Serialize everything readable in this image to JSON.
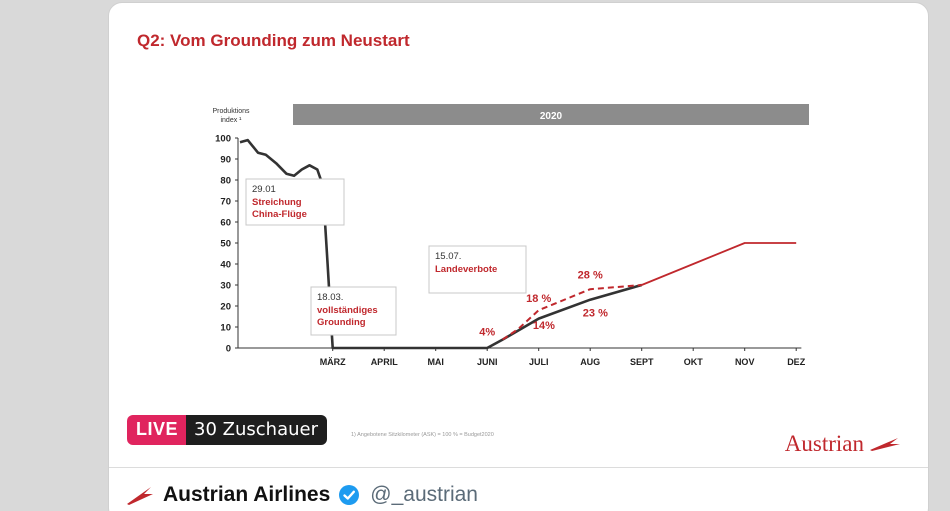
{
  "slide": {
    "title": "Q2: Vom Grounding zum Neustart",
    "footnote": "1) Angebotene Sitzkilometer (ASK) = 100 % = Budget2020",
    "logo_text": "Austrian"
  },
  "live": {
    "tag": "LIVE",
    "viewers": "30 Zuschauer"
  },
  "profile": {
    "name": "Austrian Airlines",
    "handle": "@_austrian"
  },
  "colors": {
    "brand_red": "#c0282d",
    "actual_line": "#333333",
    "year_bar": "#8c8c8c",
    "live_pink": "#e0245e"
  },
  "chart_data": {
    "type": "line",
    "title": "Q2: Vom Grounding zum Neustart",
    "ylabel_line1": "Produktions",
    "ylabel_line2": "index ¹",
    "year_label": "2020",
    "ylim": [
      0,
      100
    ],
    "yticks": [
      0,
      10,
      20,
      30,
      40,
      50,
      60,
      70,
      80,
      90,
      100
    ],
    "months": [
      "MÄRZ",
      "APRIL",
      "MAI",
      "JUNI",
      "JULI",
      "AUG",
      "SEPT",
      "OKT",
      "NOV",
      "DEZ"
    ],
    "month_positions": [
      2,
      3,
      4,
      5,
      6,
      7,
      8,
      9,
      10,
      11
    ],
    "xlim": [
      0.2,
      11.1
    ],
    "series": [
      {
        "style": "actual",
        "x": [
          0.2,
          0.35,
          0.45,
          0.55,
          0.7,
          0.9,
          1.1,
          1.25,
          1.4,
          1.55,
          1.7,
          1.8,
          1.85,
          1.9,
          1.95,
          2.0,
          4.9,
          5.0,
          5.3,
          6.0,
          7.0,
          8.0
        ],
        "values": [
          98,
          99,
          96,
          93,
          92,
          88,
          83,
          82,
          85,
          87,
          85,
          78,
          60,
          40,
          20,
          0,
          0,
          0,
          4,
          14,
          23,
          30
        ]
      },
      {
        "style": "forecast_dashed",
        "x": [
          5.3,
          5.6,
          6.0,
          7.0,
          8.0
        ],
        "values": [
          4,
          9,
          18,
          28,
          30
        ]
      },
      {
        "style": "plan",
        "x": [
          8.0,
          9.0,
          10.0,
          11.0
        ],
        "values": [
          30,
          40,
          50,
          50
        ]
      }
    ],
    "annotations": [
      {
        "date": "29.01",
        "text": [
          "Streichung",
          "China-Flüge"
        ]
      },
      {
        "date": "18.03.",
        "text": [
          "vollständiges",
          "Grounding"
        ]
      },
      {
        "date": "15.07.",
        "text": [
          "Landeverbote"
        ]
      }
    ],
    "value_labels": [
      {
        "text": "4%",
        "x": 5.0,
        "y": 6
      },
      {
        "text": "18 %",
        "x": 6.0,
        "y": 22
      },
      {
        "text": "14%",
        "x": 6.1,
        "y": 9
      },
      {
        "text": "28 %",
        "x": 7.0,
        "y": 33
      },
      {
        "text": "23 %",
        "x": 7.1,
        "y": 15
      }
    ]
  }
}
